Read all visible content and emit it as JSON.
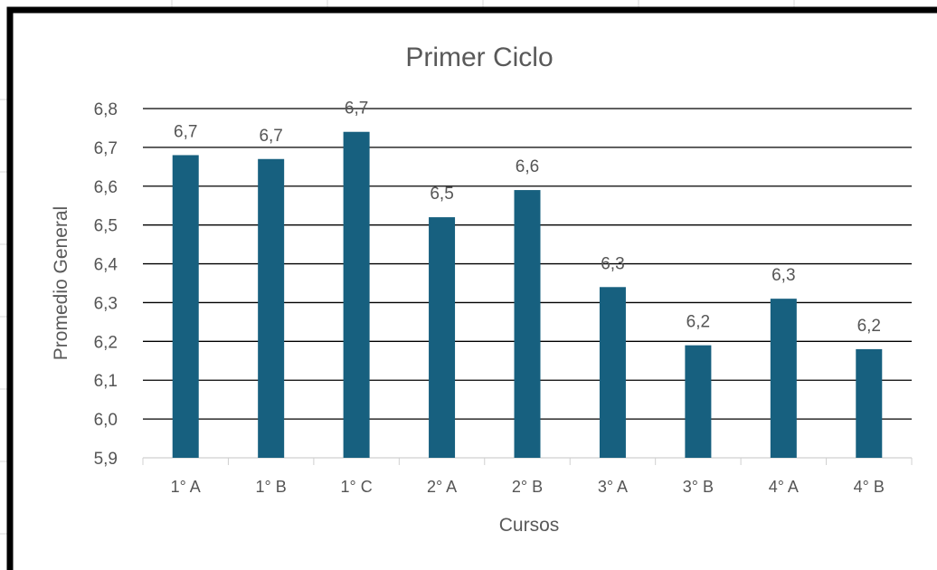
{
  "chart_data": {
    "type": "bar",
    "title": "Primer Ciclo",
    "xlabel": "Cursos",
    "ylabel": "Promedio General",
    "categories": [
      "1° A",
      "1° B",
      "1° C",
      "2° A",
      "2° B",
      "3° A",
      "3° B",
      "4° A",
      "4° B"
    ],
    "values": [
      6.68,
      6.67,
      6.74,
      6.52,
      6.59,
      6.34,
      6.19,
      6.31,
      6.18
    ],
    "data_labels": [
      "6,7",
      "6,7",
      "6,7",
      "6,5",
      "6,6",
      "6,3",
      "6,2",
      "6,3",
      "6,2"
    ],
    "yticks": [
      5.9,
      6.0,
      6.1,
      6.2,
      6.3,
      6.4,
      6.5,
      6.6,
      6.7,
      6.8
    ],
    "ytick_labels": [
      "5,9",
      "6,0",
      "6,1",
      "6,2",
      "6,3",
      "6,4",
      "6,5",
      "6,6",
      "6,7",
      "6,8"
    ],
    "ylim": [
      5.9,
      6.8
    ],
    "grid": true,
    "legend": "none",
    "bar_color": "#17607f"
  }
}
